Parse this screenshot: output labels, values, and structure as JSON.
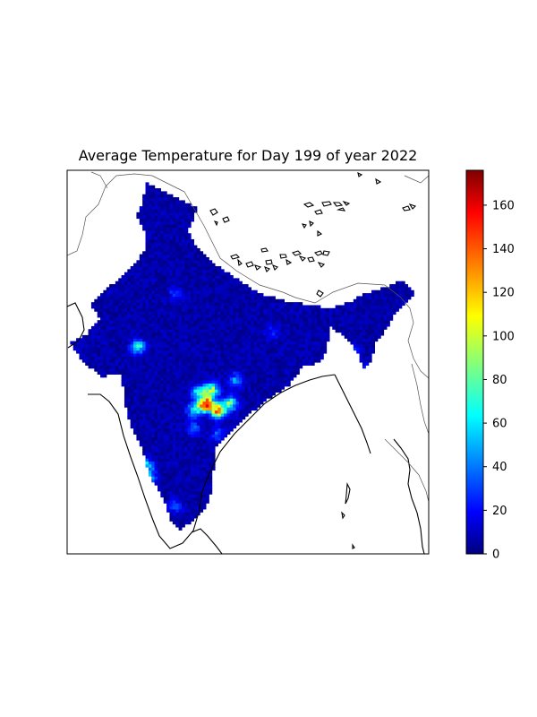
{
  "chart_data": {
    "type": "heatmap",
    "title": "Average Temperature for Day 199 of year 2022",
    "colormap": "jet",
    "colorbar": {
      "min": 0,
      "max": 176,
      "ticks": [
        0,
        20,
        40,
        60,
        80,
        100,
        120,
        140,
        160
      ],
      "tick_labels": [
        "0",
        "20",
        "40",
        "60",
        "80",
        "100",
        "120",
        "140",
        "160"
      ]
    },
    "background_value": 0,
    "hotspots": [
      {
        "lon": 79.5,
        "lat": 18.5,
        "value": 150
      },
      {
        "lon": 80.5,
        "lat": 18.0,
        "value": 120
      },
      {
        "lon": 80.0,
        "lat": 19.7,
        "value": 80
      },
      {
        "lon": 79.0,
        "lat": 19.5,
        "value": 65
      },
      {
        "lon": 81.5,
        "lat": 18.6,
        "value": 70
      },
      {
        "lon": 78.5,
        "lat": 18.0,
        "value": 55
      },
      {
        "lon": 73.9,
        "lat": 23.3,
        "value": 60
      },
      {
        "lon": 74.5,
        "lat": 13.5,
        "value": 55
      },
      {
        "lon": 74.8,
        "lat": 12.5,
        "value": 45
      },
      {
        "lon": 91.5,
        "lat": 22.8,
        "value": 45
      },
      {
        "lon": 97.0,
        "lat": 22.4,
        "value": 40
      },
      {
        "lon": 82.0,
        "lat": 20.5,
        "value": 40
      },
      {
        "lon": 92.6,
        "lat": 21.2,
        "value": 35
      },
      {
        "lon": 80.5,
        "lat": 16.0,
        "value": 30
      },
      {
        "lon": 78.5,
        "lat": 16.5,
        "value": 28
      },
      {
        "lon": 77.0,
        "lat": 10.0,
        "value": 25
      },
      {
        "lon": 77.0,
        "lat": 27.8,
        "value": 20
      },
      {
        "lon": 85.0,
        "lat": 24.5,
        "value": 18
      }
    ]
  }
}
